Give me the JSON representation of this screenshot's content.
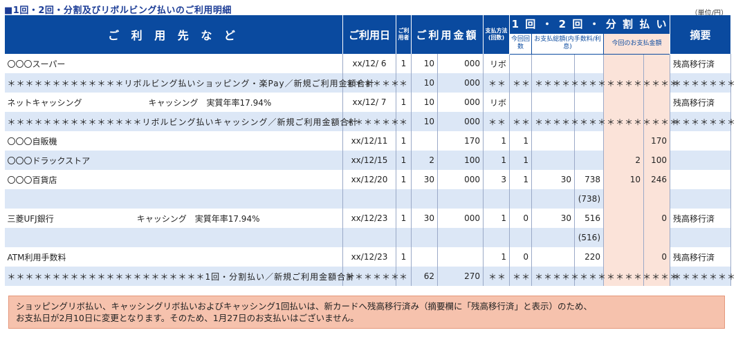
{
  "title": "■1回・2回・分割及びリボルビング払いのご利用明細",
  "unit": "（単位/円）",
  "headers": {
    "shop": "ご 利 用 先 な ど",
    "date": "ご利用日",
    "user": "ご利用者",
    "amount": "ご利用金額",
    "method": "支払方法(回数)",
    "installment": "1 回 ・ 2 回 ・ 分 割 払 い",
    "this_count": "今回回数",
    "total_payment": "お支払総額(内手数料/利息)",
    "this_payment": "今回のお支払金額",
    "memo": "摘要"
  },
  "rows": [
    {
      "shop": "〇〇〇スーパー",
      "date": "xx/12/ 6",
      "user": "1",
      "amt_a": "10",
      "amt_b": "000",
      "method": "リボ",
      "count": "",
      "total_a": "",
      "total_b": "",
      "pay_a": "",
      "pay_b": "",
      "memo": "残高移行済"
    },
    {
      "shop": "＊＊＊＊＊＊＊＊＊＊＊＊＊リボルビング払いショッピング・楽Pay／新規ご利用金額合計",
      "date": "＊＊＊＊＊＊",
      "user": "＊",
      "amt_a": "10",
      "amt_b": "000",
      "method": "＊＊",
      "count": "＊＊",
      "total_a": "＊＊＊＊＊＊＊＊",
      "total_b": "",
      "pay_a": "＊＊＊＊＊＊＊＊",
      "pay_b": "",
      "memo": "＊＊＊＊＊＊＊"
    },
    {
      "shop": "ネットキャッシング　　　　　　　　キャッシング　実質年率17.94%",
      "date": "xx/12/ 7",
      "user": "1",
      "amt_a": "10",
      "amt_b": "000",
      "method": "リボ",
      "count": "",
      "total_a": "",
      "total_b": "",
      "pay_a": "",
      "pay_b": "",
      "memo": "残高移行済"
    },
    {
      "shop": "＊＊＊＊＊＊＊＊＊＊＊＊＊＊＊リボルビング払いキャッシング／新規ご利用金額合計",
      "date": "＊＊＊＊＊＊",
      "user": "＊",
      "amt_a": "10",
      "amt_b": "000",
      "method": "＊＊",
      "count": "＊＊",
      "total_a": "＊＊＊＊＊＊＊＊",
      "total_b": "",
      "pay_a": "＊＊＊＊＊＊＊＊",
      "pay_b": "",
      "memo": "＊＊＊＊＊＊＊"
    },
    {
      "shop": "〇〇〇自販機",
      "date": "xx/12/11",
      "user": "1",
      "amt_a": "",
      "amt_b": "170",
      "method": "1",
      "count": "1",
      "total_a": "",
      "total_b": "",
      "pay_a": "",
      "pay_b": "170",
      "memo": ""
    },
    {
      "shop": "〇〇〇ドラックストア",
      "date": "xx/12/15",
      "user": "1",
      "amt_a": "2",
      "amt_b": "100",
      "method": "1",
      "count": "1",
      "total_a": "",
      "total_b": "",
      "pay_a": "2",
      "pay_b": "100",
      "memo": ""
    },
    {
      "shop": "〇〇〇百貨店",
      "date": "xx/12/20",
      "user": "1",
      "amt_a": "30",
      "amt_b": "000",
      "method": "3",
      "count": "1",
      "total_a": "30",
      "total_b": "738",
      "pay_a": "10",
      "pay_b": "246",
      "memo": ""
    },
    {
      "shop": "",
      "date": "",
      "user": "",
      "amt_a": "",
      "amt_b": "",
      "method": "",
      "count": "",
      "total_a": "",
      "total_b": "(738)",
      "pay_a": "",
      "pay_b": "",
      "memo": ""
    },
    {
      "shop": "三菱UFJ銀行　　　　　　　　　　キャッシング　実質年率17.94%",
      "date": "xx/12/23",
      "user": "1",
      "amt_a": "30",
      "amt_b": "000",
      "method": "1",
      "count": "0",
      "total_a": "30",
      "total_b": "516",
      "pay_a": "",
      "pay_b": "0",
      "memo": "残高移行済"
    },
    {
      "shop": "",
      "date": "",
      "user": "",
      "amt_a": "",
      "amt_b": "",
      "method": "",
      "count": "",
      "total_a": "",
      "total_b": "(516)",
      "pay_a": "",
      "pay_b": "",
      "memo": ""
    },
    {
      "shop": "ATM利用手数料",
      "date": "xx/12/23",
      "user": "1",
      "amt_a": "",
      "amt_b": "",
      "method": "1",
      "count": "0",
      "total_a": "",
      "total_b": "220",
      "pay_a": "",
      "pay_b": "0",
      "memo": "残高移行済"
    },
    {
      "shop": "＊＊＊＊＊＊＊＊＊＊＊＊＊＊＊＊＊＊＊＊＊＊1回・分割払い／新規ご利用金額合計",
      "date": "＊＊＊＊＊＊",
      "user": "＊",
      "amt_a": "62",
      "amt_b": "270",
      "method": "＊＊",
      "count": "＊＊",
      "total_a": "＊＊＊＊＊＊＊＊",
      "total_b": "",
      "pay_a": "＊＊＊＊＊＊＊＊",
      "pay_b": "",
      "memo": "＊＊＊＊＊＊＊"
    }
  ],
  "notice": {
    "line1": "ショッピングリボ払い、キャッシングリボ払いおよびキャッシング1回払いは、新カードへ残高移行済み（摘要欄に「残高移行済」と表示）のため、",
    "line2": "お支払日が2月10日に変更となります。そのため、1月27日のお支払いはございません。"
  }
}
